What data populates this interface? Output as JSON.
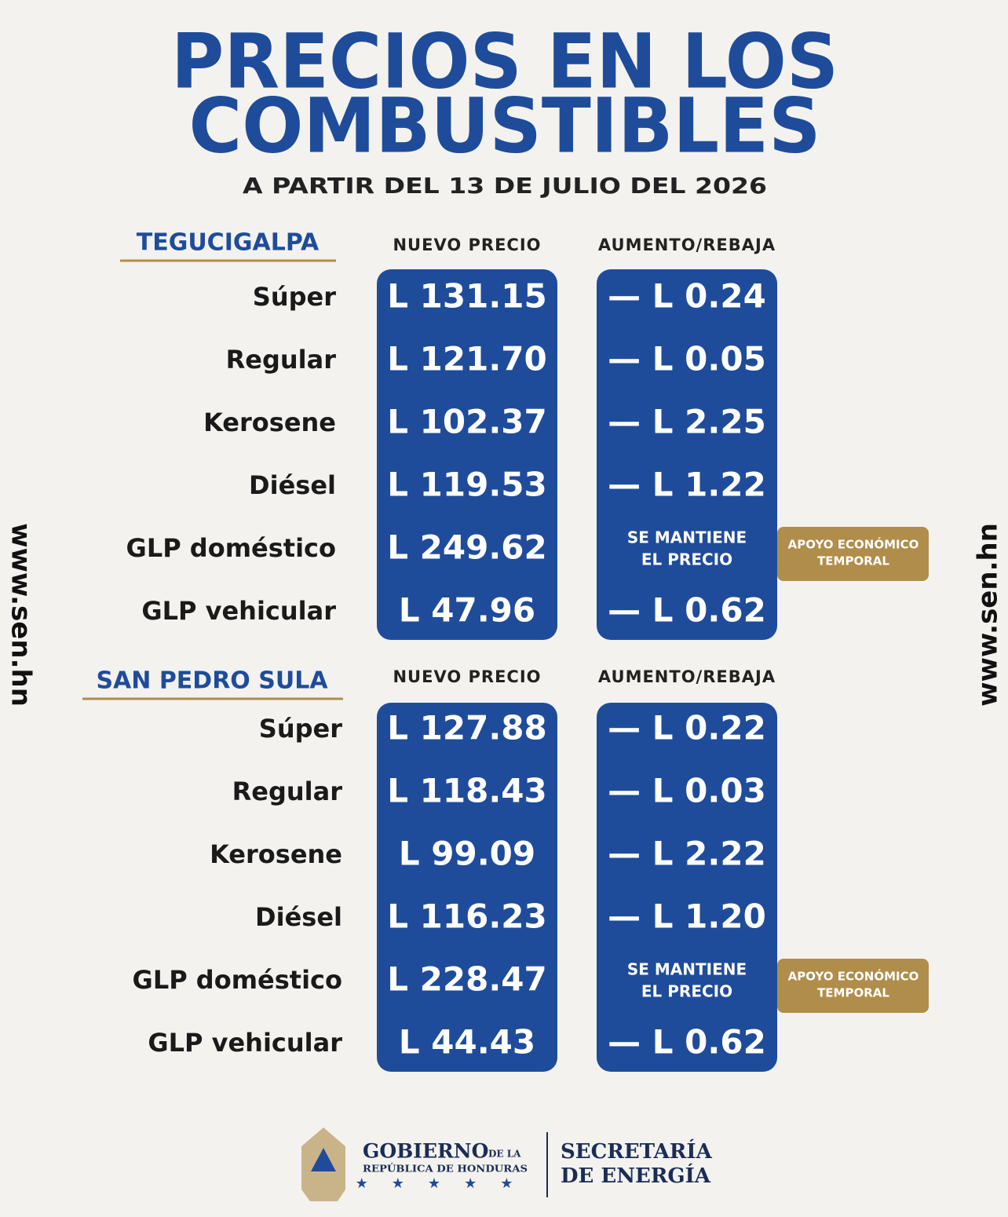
{
  "title": [
    "PRECIOS EN LOS",
    "COMBUSTIBLES"
  ],
  "subtitle": "A PARTIR DEL 13 DE JULIO DEL 2026",
  "side_text": "www.sen.hn",
  "sections": [
    {
      "city": "TEGUCIGALPA",
      "headers": [
        "NUEVO PRECIO",
        "AUMENTO/REBAJA"
      ],
      "rows": [
        {
          "fuel": "Súper",
          "price": "L 131.15",
          "change": [
            "— L 0.24"
          ]
        },
        {
          "fuel": "Regular",
          "price": "L 121.70",
          "change": [
            "— L 0.05"
          ]
        },
        {
          "fuel": "Kerosene",
          "price": "L 102.37",
          "change": [
            "— L 2.25"
          ]
        },
        {
          "fuel": "Diésel",
          "price": "L 119.53",
          "change": [
            "— L 1.22"
          ]
        },
        {
          "fuel": "GLP doméstico",
          "price": "L 249.62",
          "change": [
            "SE MANTIENE",
            "EL PRECIO"
          ],
          "badge": [
            "APOYO ECONÓMICO",
            "TEMPORAL"
          ]
        },
        {
          "fuel": "GLP vehicular",
          "price": "L 47.96",
          "change": [
            "— L 0.62"
          ]
        }
      ]
    },
    {
      "city": "SAN PEDRO SULA",
      "headers": [
        "NUEVO PRECIO",
        "AUMENTO/REBAJA"
      ],
      "rows": [
        {
          "fuel": "Súper",
          "price": "L 127.88",
          "change": [
            "— L 0.22"
          ]
        },
        {
          "fuel": "Regular",
          "price": "L 118.43",
          "change": [
            "— L 0.03"
          ]
        },
        {
          "fuel": "Kerosene",
          "price": "L 99.09",
          "change": [
            "— L 2.22"
          ]
        },
        {
          "fuel": "Diésel",
          "price": "L 116.23",
          "change": [
            "— L 1.20"
          ]
        },
        {
          "fuel": "GLP doméstico",
          "price": "L 228.47",
          "change": [
            "SE MANTIENE",
            "EL PRECIO"
          ],
          "badge": [
            "APOYO ECONÓMICO",
            "TEMPORAL"
          ]
        },
        {
          "fuel": "GLP vehicular",
          "price": "L 44.43",
          "change": [
            "— L 0.62"
          ]
        }
      ]
    }
  ],
  "footer": {
    "gov": "GOBIERNO",
    "gov_de": "DE LA",
    "gov_sub": "REPÚBLICA DE HONDURAS",
    "sec": [
      "SECRETARÍA",
      "DE ENERGÍA"
    ]
  }
}
